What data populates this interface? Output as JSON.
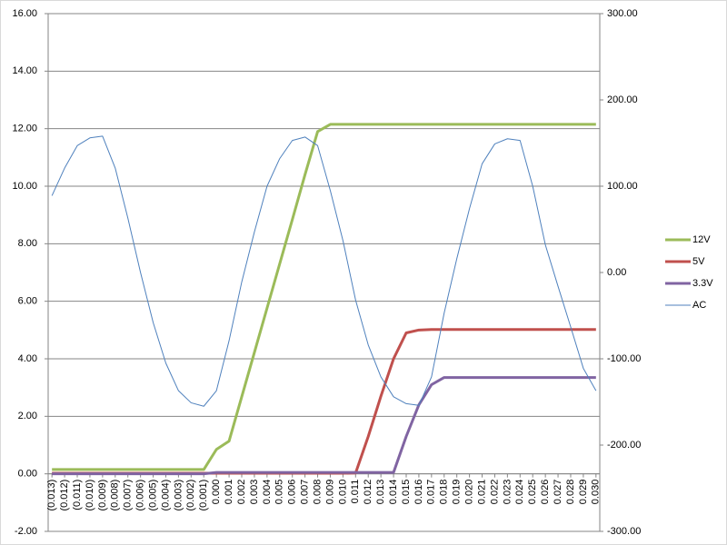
{
  "chart_data": {
    "type": "line",
    "x": [
      -0.013,
      -0.012,
      -0.011,
      -0.01,
      -0.009,
      -0.008,
      -0.007,
      -0.006,
      -0.005,
      -0.004,
      -0.003,
      -0.002,
      -0.001,
      0.0,
      0.001,
      0.002,
      0.003,
      0.004,
      0.005,
      0.006,
      0.007,
      0.008,
      0.009,
      0.01,
      0.011,
      0.012,
      0.013,
      0.014,
      0.015,
      0.016,
      0.017,
      0.018,
      0.019,
      0.02,
      0.021,
      0.022,
      0.023,
      0.024,
      0.025,
      0.026,
      0.027,
      0.028,
      0.029,
      0.03
    ],
    "xlim": [
      -0.0133,
      0.0303
    ],
    "xticks": [
      {
        "value": -0.013,
        "label": "(0.013)"
      },
      {
        "value": -0.012,
        "label": "(0.012)"
      },
      {
        "value": -0.011,
        "label": "(0.011)"
      },
      {
        "value": -0.01,
        "label": "(0.010)"
      },
      {
        "value": -0.009,
        "label": "(0.009)"
      },
      {
        "value": -0.008,
        "label": "(0.008)"
      },
      {
        "value": -0.007,
        "label": "(0.007)"
      },
      {
        "value": -0.006,
        "label": "(0.006)"
      },
      {
        "value": -0.005,
        "label": "(0.005)"
      },
      {
        "value": -0.004,
        "label": "(0.004)"
      },
      {
        "value": -0.003,
        "label": "(0.003)"
      },
      {
        "value": -0.002,
        "label": "(0.002)"
      },
      {
        "value": -0.001,
        "label": "(0.001)"
      },
      {
        "value": 0,
        "label": "0.000"
      },
      {
        "value": 0.001,
        "label": "0.001"
      },
      {
        "value": 0.002,
        "label": "0.002"
      },
      {
        "value": 0.003,
        "label": "0.003"
      },
      {
        "value": 0.004,
        "label": "0.004"
      },
      {
        "value": 0.005,
        "label": "0.005"
      },
      {
        "value": 0.006,
        "label": "0.006"
      },
      {
        "value": 0.007,
        "label": "0.007"
      },
      {
        "value": 0.008,
        "label": "0.008"
      },
      {
        "value": 0.009,
        "label": "0.009"
      },
      {
        "value": 0.01,
        "label": "0.010"
      },
      {
        "value": 0.011,
        "label": "0.011"
      },
      {
        "value": 0.012,
        "label": "0.012"
      },
      {
        "value": 0.013,
        "label": "0.013"
      },
      {
        "value": 0.014,
        "label": "0.014"
      },
      {
        "value": 0.015,
        "label": "0.015"
      },
      {
        "value": 0.016,
        "label": "0.016"
      },
      {
        "value": 0.017,
        "label": "0.017"
      },
      {
        "value": 0.018,
        "label": "0.018"
      },
      {
        "value": 0.019,
        "label": "0.019"
      },
      {
        "value": 0.02,
        "label": "0.020"
      },
      {
        "value": 0.021,
        "label": "0.021"
      },
      {
        "value": 0.022,
        "label": "0.022"
      },
      {
        "value": 0.023,
        "label": "0.023"
      },
      {
        "value": 0.024,
        "label": "0.024"
      },
      {
        "value": 0.025,
        "label": "0.025"
      },
      {
        "value": 0.026,
        "label": "0.026"
      },
      {
        "value": 0.027,
        "label": "0.027"
      },
      {
        "value": 0.028,
        "label": "0.028"
      },
      {
        "value": 0.029,
        "label": "0.029"
      },
      {
        "value": 0.03,
        "label": "0.030"
      }
    ],
    "ylim": [
      -2,
      16
    ],
    "yticks": [
      {
        "value": -2,
        "label": "-2.00"
      },
      {
        "value": 0,
        "label": "0.00"
      },
      {
        "value": 2,
        "label": "2.00"
      },
      {
        "value": 4,
        "label": "4.00"
      },
      {
        "value": 6,
        "label": "6.00"
      },
      {
        "value": 8,
        "label": "8.00"
      },
      {
        "value": 10,
        "label": "10.00"
      },
      {
        "value": 12,
        "label": "12.00"
      },
      {
        "value": 14,
        "label": "14.00"
      },
      {
        "value": 16,
        "label": "16.00"
      }
    ],
    "y2lim": [
      -300,
      300
    ],
    "y2ticks": [
      {
        "value": -300,
        "label": "-300.00"
      },
      {
        "value": -200,
        "label": "-200.00"
      },
      {
        "value": -100,
        "label": "-100.00"
      },
      {
        "value": 0,
        "label": "0.00"
      },
      {
        "value": 100,
        "label": "100.00"
      },
      {
        "value": 200,
        "label": "200.00"
      },
      {
        "value": 300,
        "label": "300.00"
      }
    ],
    "grid": true,
    "legend": "right",
    "series": [
      {
        "name": "12V",
        "color": "#9bbb59",
        "width": 3,
        "values": [
          0.15,
          0.15,
          0.15,
          0.15,
          0.15,
          0.15,
          0.15,
          0.15,
          0.15,
          0.15,
          0.15,
          0.15,
          0.15,
          0.85,
          1.14,
          2.68,
          4.22,
          5.76,
          7.3,
          8.84,
          10.4,
          11.9,
          12.15,
          12.15,
          12.15,
          12.15,
          12.15,
          12.15,
          12.15,
          12.15,
          12.15,
          12.15,
          12.15,
          12.15,
          12.15,
          12.15,
          12.15,
          12.15,
          12.15,
          12.15,
          12.15,
          12.15,
          12.15,
          12.15
        ]
      },
      {
        "name": "5V",
        "color": "#c0504d",
        "width": 3,
        "values": [
          0.02,
          0.02,
          0.02,
          0.02,
          0.02,
          0.02,
          0.02,
          0.02,
          0.02,
          0.02,
          0.02,
          0.02,
          0.02,
          0.02,
          0.02,
          0.02,
          0.02,
          0.02,
          0.02,
          0.02,
          0.02,
          0.02,
          0.02,
          0.02,
          0.03,
          1.3,
          2.7,
          4,
          4.9,
          5,
          5.02,
          5.02,
          5.02,
          5.02,
          5.02,
          5.02,
          5.02,
          5.02,
          5.02,
          5.02,
          5.02,
          5.02,
          5.02,
          5.02
        ]
      },
      {
        "name": "3.3V",
        "color": "#8064a2",
        "width": 3,
        "values": [
          0,
          0,
          0,
          0,
          0,
          0,
          0,
          0,
          0,
          0,
          0,
          0,
          0,
          0.05,
          0.05,
          0.05,
          0.05,
          0.05,
          0.05,
          0.05,
          0.05,
          0.05,
          0.05,
          0.05,
          0.05,
          0.05,
          0.05,
          0.05,
          1.3,
          2.4,
          3.1,
          3.35,
          3.35,
          3.35,
          3.35,
          3.35,
          3.35,
          3.35,
          3.35,
          3.35,
          3.35,
          3.35,
          3.35,
          3.35
        ]
      },
      {
        "name": "AC",
        "color": "#4f81bd",
        "width": 1,
        "axis": "y2",
        "values": [
          89,
          121,
          147,
          156,
          158,
          121,
          63,
          0,
          -58,
          -105,
          -137,
          -151,
          -155,
          -137,
          -79,
          -11,
          47,
          100,
          132,
          153,
          157,
          147,
          95,
          37,
          -32,
          -84,
          -121,
          -144,
          -152,
          -154,
          -121,
          -47,
          16,
          74,
          126,
          149,
          155,
          153,
          100,
          32,
          -16,
          -63,
          -111,
          -137
        ]
      }
    ]
  }
}
